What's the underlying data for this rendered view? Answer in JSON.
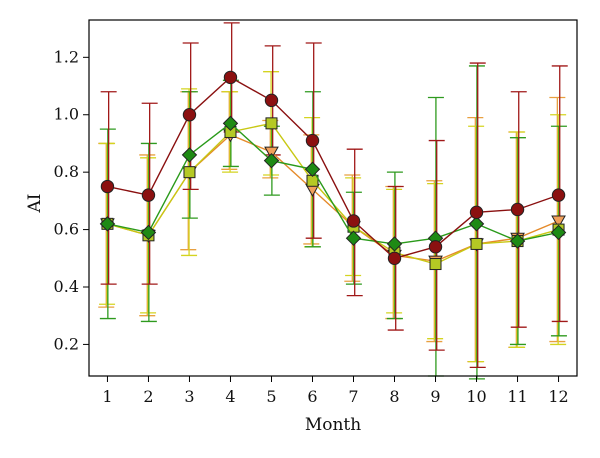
{
  "chart_data": {
    "type": "line",
    "title": "",
    "xlabel": "Month",
    "ylabel": "AI",
    "x": [
      1,
      2,
      3,
      4,
      5,
      6,
      7,
      8,
      9,
      10,
      11,
      12
    ],
    "xlim": [
      0.55,
      12.45
    ],
    "ylim": [
      0.09,
      1.33
    ],
    "yticks": [
      0.2,
      0.4,
      0.6,
      0.8,
      1.0,
      1.2
    ],
    "ytick_labels": [
      "0.2",
      "0.4",
      "0.6",
      "0.8",
      "1.0",
      "1.2"
    ],
    "grid": false,
    "series": [
      {
        "marker": "triangle-down",
        "line_color": "#e58a2a",
        "fill": "#f2a05a",
        "error_color": "#e8a040",
        "values": [
          0.62,
          0.58,
          0.8,
          0.93,
          0.87,
          0.74,
          0.61,
          0.51,
          0.49,
          0.55,
          0.57,
          0.63
        ],
        "lower": [
          0.33,
          0.3,
          0.53,
          0.81,
          0.78,
          0.55,
          0.42,
          0.29,
          0.21,
          0.14,
          0.19,
          0.21
        ],
        "upper": [
          0.9,
          0.86,
          1.08,
          1.08,
          0.98,
          0.93,
          0.79,
          0.75,
          0.77,
          0.99,
          0.94,
          1.06
        ]
      },
      {
        "marker": "square",
        "line_color": "#c8c814",
        "fill": "#b5c924",
        "error_color": "#d4d420",
        "values": [
          0.62,
          0.58,
          0.8,
          0.94,
          0.97,
          0.77,
          0.61,
          0.52,
          0.48,
          0.55,
          0.56,
          0.6
        ],
        "lower": [
          0.34,
          0.31,
          0.51,
          0.8,
          0.79,
          0.54,
          0.44,
          0.31,
          0.22,
          0.14,
          0.19,
          0.2
        ],
        "upper": [
          0.9,
          0.85,
          1.09,
          1.08,
          1.15,
          0.99,
          0.78,
          0.74,
          0.76,
          0.96,
          0.94,
          1.0
        ]
      },
      {
        "marker": "diamond",
        "line_color": "#2a9a1a",
        "fill": "#1e8a14",
        "error_color": "#2e9a1e",
        "values": [
          0.62,
          0.59,
          0.86,
          0.97,
          0.84,
          0.81,
          0.57,
          0.55,
          0.57,
          0.62,
          0.56,
          0.59
        ],
        "lower": [
          0.29,
          0.28,
          0.64,
          0.82,
          0.72,
          0.54,
          0.41,
          0.29,
          0.09,
          0.08,
          0.2,
          0.23
        ],
        "upper": [
          0.95,
          0.9,
          1.08,
          1.12,
          0.96,
          1.08,
          0.73,
          0.8,
          1.06,
          1.17,
          0.92,
          0.96
        ]
      },
      {
        "marker": "circle",
        "line_color": "#8a1010",
        "fill": "#8b1010",
        "error_color": "#a01818",
        "values": [
          0.75,
          0.72,
          1.0,
          1.13,
          1.05,
          0.91,
          0.63,
          0.5,
          0.54,
          0.66,
          0.67,
          0.72
        ],
        "lower": [
          0.41,
          0.41,
          0.74,
          0.94,
          0.86,
          0.57,
          0.37,
          0.25,
          0.18,
          0.12,
          0.26,
          0.28
        ],
        "upper": [
          1.08,
          1.04,
          1.25,
          1.32,
          1.24,
          1.25,
          0.88,
          0.75,
          0.91,
          1.18,
          1.08,
          1.17
        ]
      }
    ]
  }
}
